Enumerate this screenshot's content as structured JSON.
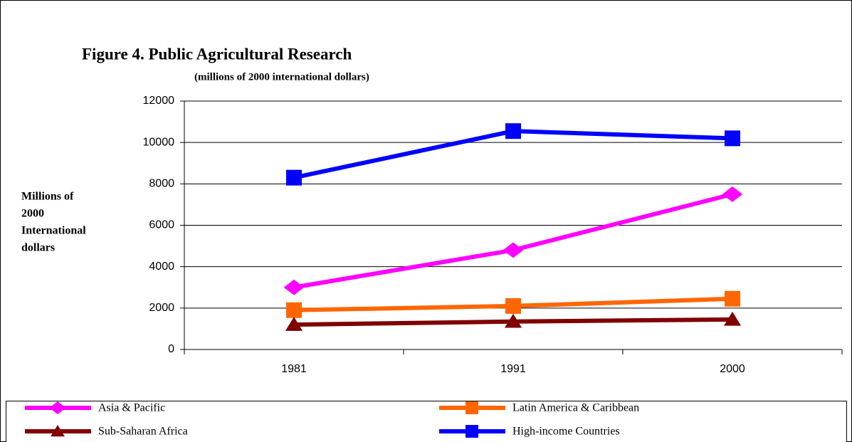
{
  "chart_data": {
    "type": "line",
    "title": "Figure 4. Public Agricultural Research",
    "subtitle": "(millions of 2000 international dollars)",
    "ylabel": [
      "Millions of",
      "2000",
      "International",
      "dollars"
    ],
    "categories": [
      "1981",
      "1991",
      "2000"
    ],
    "series": [
      {
        "name": "Asia & Pacific",
        "color": "#ff00ff",
        "marker": "diamond",
        "values": [
          3000,
          4800,
          7500
        ]
      },
      {
        "name": "Latin America & Caribbean",
        "color": "#ff6600",
        "marker": "square",
        "values": [
          1900,
          2100,
          2450
        ]
      },
      {
        "name": "Sub-Saharan Africa",
        "color": "#800000",
        "marker": "triangle",
        "values": [
          1200,
          1350,
          1450
        ]
      },
      {
        "name": "High-income Countries",
        "color": "#0000ff",
        "marker": "square",
        "values": [
          8300,
          10550,
          10200
        ]
      }
    ],
    "ylim": [
      0,
      12000
    ],
    "yticks": [
      0,
      2000,
      4000,
      6000,
      8000,
      10000,
      12000
    ],
    "grid": true
  }
}
